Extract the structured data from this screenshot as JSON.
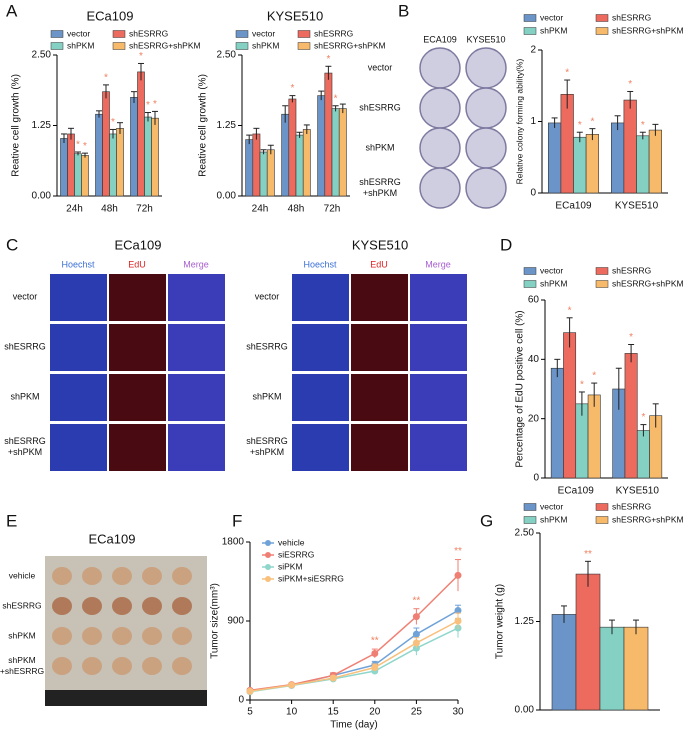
{
  "panel_letters": [
    "A",
    "B",
    "C",
    "D",
    "E",
    "F",
    "G"
  ],
  "colony_images": {
    "columns": [
      "ECA109",
      "KYSE510"
    ],
    "rows": [
      "vector",
      "shESRRG",
      "shPKM",
      [
        "shESRRG",
        "+shPKM"
      ]
    ]
  },
  "edu_images": [
    {
      "title": "ECa109",
      "columns": [
        "Hoechst",
        "EdU",
        "Merge"
      ],
      "rows": [
        "vector",
        "shESRRG",
        "shPKM",
        [
          "shESRRG",
          "+shPKM"
        ]
      ]
    },
    {
      "title": "KYSE510",
      "columns": [
        "Hoechst",
        "EdU",
        "Merge"
      ],
      "rows": [
        "vector",
        "shESRRG",
        "shPKM",
        [
          "shESRRG",
          "+shPKM"
        ]
      ]
    }
  ],
  "tumor_photo": {
    "title": "ECa109",
    "rows": [
      "vehicle",
      "shESRRG",
      "shPKM",
      [
        "shPKM",
        "+shESRRG"
      ]
    ]
  },
  "chart_data": [
    {
      "type": "bar",
      "title": "ECa109",
      "ylabel": "Reative cell growth (%)",
      "categories": [
        "24h",
        "48h",
        "72h"
      ],
      "ylim": [
        0,
        2.5
      ],
      "yticks": [
        {
          "value": 0,
          "label": "0.00"
        },
        1.25,
        {
          "value": 2.5,
          "label": "2.50"
        }
      ],
      "series": [
        {
          "name": "vector",
          "color": "#6b95c8",
          "values": [
            1.02,
            1.45,
            1.75
          ],
          "errors": [
            0.08,
            0.06,
            0.1
          ],
          "markers": [
            null,
            null,
            null
          ]
        },
        {
          "name": "shESRRG",
          "color": "#ec6a5e",
          "values": [
            1.1,
            1.85,
            2.2
          ],
          "errors": [
            0.1,
            0.12,
            0.15
          ],
          "markers": [
            null,
            "*",
            "*"
          ]
        },
        {
          "name": "shPKM",
          "color": "#84d1c4",
          "values": [
            0.75,
            1.1,
            1.4
          ],
          "errors": [
            0.03,
            0.08,
            0.08
          ],
          "markers": [
            "*",
            "*",
            "*"
          ]
        },
        {
          "name": "shESRRG+shPKM",
          "color": "#f7b96a",
          "values": [
            0.72,
            1.2,
            1.38
          ],
          "errors": [
            0.04,
            0.1,
            0.12
          ],
          "markers": [
            "*",
            null,
            "*"
          ]
        }
      ]
    },
    {
      "type": "bar",
      "title": "KYSE510",
      "ylabel": "Reative cell growth (%)",
      "categories": [
        "24h",
        "48h",
        "72h"
      ],
      "ylim": [
        0,
        2.5
      ],
      "yticks": [
        {
          "value": 0,
          "label": "0.00"
        },
        1.25,
        {
          "value": 2.5,
          "label": "2.50"
        }
      ],
      "series": [
        {
          "name": "vector",
          "color": "#6b95c8",
          "values": [
            1.0,
            1.45,
            1.78
          ],
          "errors": [
            0.08,
            0.15,
            0.08
          ],
          "markers": [
            null,
            null,
            null
          ]
        },
        {
          "name": "shESRRG",
          "color": "#ec6a5e",
          "values": [
            1.1,
            1.72,
            2.18
          ],
          "errors": [
            0.1,
            0.06,
            0.12
          ],
          "markers": [
            null,
            "*",
            "*"
          ]
        },
        {
          "name": "shPKM",
          "color": "#84d1c4",
          "values": [
            0.78,
            1.08,
            1.55
          ],
          "errors": [
            0.04,
            0.05,
            0.05
          ],
          "markers": [
            null,
            null,
            "*"
          ]
        },
        {
          "name": "shESRRG+shPKM",
          "color": "#f7b96a",
          "values": [
            0.82,
            1.18,
            1.55
          ],
          "errors": [
            0.08,
            0.08,
            0.08
          ],
          "markers": [
            null,
            null,
            null
          ]
        }
      ]
    },
    {
      "type": "bar",
      "ylabel": "Relative colony forming ability(%)",
      "categories": [
        "ECa109",
        "KYSE510"
      ],
      "ylim": [
        0,
        2
      ],
      "yticks": [
        0,
        1,
        2
      ],
      "series": [
        {
          "name": "vector",
          "color": "#6b95c8",
          "values": [
            0.98,
            0.98
          ],
          "errors": [
            0.07,
            0.1
          ],
          "markers": [
            null,
            null
          ]
        },
        {
          "name": "shESRRG",
          "color": "#ec6a5e",
          "values": [
            1.38,
            1.3
          ],
          "errors": [
            0.2,
            0.12
          ],
          "markers": [
            "*",
            "*"
          ]
        },
        {
          "name": "shPKM",
          "color": "#84d1c4",
          "values": [
            0.78,
            0.8
          ],
          "errors": [
            0.07,
            0.05
          ],
          "markers": [
            "*",
            "*"
          ]
        },
        {
          "name": "shESRRG+shPKM",
          "color": "#f7b96a",
          "values": [
            0.82,
            0.88
          ],
          "errors": [
            0.08,
            0.08
          ],
          "markers": [
            "*",
            null
          ]
        }
      ]
    },
    {
      "type": "bar",
      "ylabel": "Percentage of EdU positive cell (%)",
      "categories": [
        "ECa109",
        "KYSE510"
      ],
      "ylim": [
        0,
        60
      ],
      "yticks": [
        0,
        20,
        40,
        60
      ],
      "series": [
        {
          "name": "vector",
          "color": "#6b95c8",
          "values": [
            37,
            30
          ],
          "errors": [
            3,
            7
          ],
          "markers": [
            null,
            null
          ]
        },
        {
          "name": "shESRRG",
          "color": "#ec6a5e",
          "values": [
            49,
            42
          ],
          "errors": [
            5,
            3
          ],
          "markers": [
            "*",
            "*"
          ]
        },
        {
          "name": "shPKM",
          "color": "#84d1c4",
          "values": [
            25,
            16
          ],
          "errors": [
            4,
            2
          ],
          "markers": [
            "*",
            "*"
          ]
        },
        {
          "name": "shESRRG+shPKM",
          "color": "#f7b96a",
          "values": [
            28,
            21
          ],
          "errors": [
            4,
            4
          ],
          "markers": [
            "*",
            null
          ]
        }
      ]
    },
    {
      "type": "line",
      "xlabel": "Time (day)",
      "ylabel": "Tumor size(mm³)",
      "x": [
        5,
        10,
        15,
        20,
        25,
        30
      ],
      "xlim": [
        5,
        30
      ],
      "xticks": [
        5,
        10,
        15,
        20,
        25,
        30
      ],
      "ylim": [
        0,
        1800
      ],
      "yticks": [
        0,
        900,
        1800
      ],
      "series": [
        {
          "name": "vehicle",
          "color": "#6fa3d8",
          "values": [
            100,
            170,
            280,
            400,
            750,
            1020
          ],
          "errors": [
            20,
            15,
            25,
            40,
            70,
            60
          ],
          "markers": [
            null,
            null,
            null,
            null,
            null,
            null
          ]
        },
        {
          "name": "siESRRG",
          "color": "#f07f73",
          "values": [
            110,
            175,
            280,
            530,
            950,
            1420
          ],
          "errors": [
            20,
            15,
            30,
            50,
            90,
            180
          ],
          "markers": [
            null,
            null,
            null,
            "**",
            "**",
            "**"
          ]
        },
        {
          "name": "siPKM",
          "color": "#8fd6cc",
          "values": [
            95,
            165,
            240,
            330,
            590,
            820
          ],
          "errors": [
            20,
            15,
            25,
            35,
            80,
            110
          ],
          "markers": [
            null,
            null,
            null,
            null,
            null,
            null
          ]
        },
        {
          "name": "siPKM+siESRRG",
          "color": "#f8c07c",
          "values": [
            100,
            170,
            250,
            370,
            650,
            900
          ],
          "errors": [
            20,
            15,
            25,
            40,
            60,
            90
          ],
          "markers": [
            null,
            null,
            null,
            null,
            null,
            null
          ]
        }
      ]
    },
    {
      "type": "bar",
      "ylabel": "Tumor weight (g)",
      "categories": [
        null
      ],
      "ylim": [
        0,
        2.5
      ],
      "yticks": [
        {
          "value": 0,
          "label": "0.00"
        },
        1.25,
        {
          "value": 2.5,
          "label": "2.50"
        }
      ],
      "series": [
        {
          "name": "vector",
          "color": "#6b95c8",
          "values": [
            1.35
          ],
          "errors": [
            0.12
          ],
          "markers": [
            null
          ]
        },
        {
          "name": "shESRRG",
          "color": "#ec6a5e",
          "values": [
            1.92
          ],
          "errors": [
            0.18
          ],
          "markers": [
            "**"
          ]
        },
        {
          "name": "shPKM",
          "color": "#84d1c4",
          "values": [
            1.17
          ],
          "errors": [
            0.1
          ],
          "markers": [
            null
          ]
        },
        {
          "name": "shESRRG+shPKM",
          "color": "#f7b96a",
          "values": [
            1.17
          ],
          "errors": [
            0.1
          ],
          "markers": [
            null
          ]
        }
      ]
    }
  ]
}
